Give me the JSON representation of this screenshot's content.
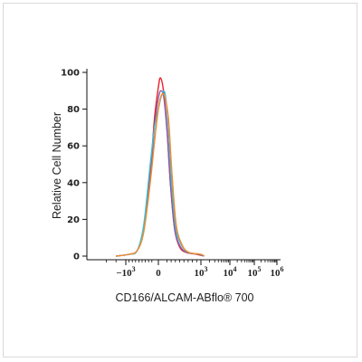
{
  "chart_data": {
    "type": "line",
    "title": "",
    "xlabel": "CD166/ALCAM-ABflo® 700",
    "ylabel": "Relative Cell Number",
    "xscale": "biexponential",
    "ylim": [
      0,
      100
    ],
    "yticks": [
      "0",
      "20",
      "40",
      "60",
      "80",
      "100"
    ],
    "xticks": [
      {
        "value": -1000,
        "base": "−10",
        "exp": "3"
      },
      {
        "value": 0,
        "base": "0",
        "exp": ""
      },
      {
        "value": 1000,
        "base": "10",
        "exp": "3"
      },
      {
        "value": 10000,
        "base": "10",
        "exp": "4"
      },
      {
        "value": 100000,
        "base": "10",
        "exp": "5"
      },
      {
        "value": 1000000,
        "base": "10",
        "exp": "6"
      }
    ],
    "grid": false,
    "legend": "none",
    "series": [
      {
        "color": "#e8202a",
        "x": [
          -1300,
          -900,
          -650,
          -450,
          -250,
          -120,
          0,
          50,
          120,
          200,
          280,
          380,
          500,
          650,
          900,
          1300
        ],
        "y": [
          0,
          1,
          3,
          15,
          45,
          75,
          92,
          97,
          90,
          70,
          40,
          15,
          5,
          2,
          1,
          0
        ]
      },
      {
        "color": "#8b59a8",
        "x": [
          -1300,
          -900,
          -650,
          -450,
          -250,
          -120,
          0,
          60,
          130,
          210,
          290,
          390,
          520,
          680,
          950,
          1300
        ],
        "y": [
          0,
          1,
          3,
          14,
          42,
          70,
          86,
          90,
          86,
          66,
          38,
          14,
          5,
          2,
          1,
          0
        ]
      },
      {
        "color": "#3cbfd7",
        "x": [
          -1300,
          -900,
          -650,
          -450,
          -250,
          -120,
          0,
          70,
          150,
          230,
          310,
          410,
          540,
          700,
          980,
          1300
        ],
        "y": [
          0,
          1,
          3,
          17,
          50,
          70,
          80,
          87,
          89,
          72,
          40,
          15,
          6,
          2,
          1,
          0
        ]
      },
      {
        "color": "#f08c2c",
        "x": [
          -1300,
          -900,
          -650,
          -450,
          -250,
          -120,
          0,
          80,
          160,
          240,
          320,
          420,
          560,
          720,
          1000,
          1300
        ],
        "y": [
          0,
          1,
          3,
          13,
          40,
          62,
          80,
          88,
          86,
          74,
          45,
          17,
          6,
          2,
          1,
          0
        ]
      }
    ]
  }
}
